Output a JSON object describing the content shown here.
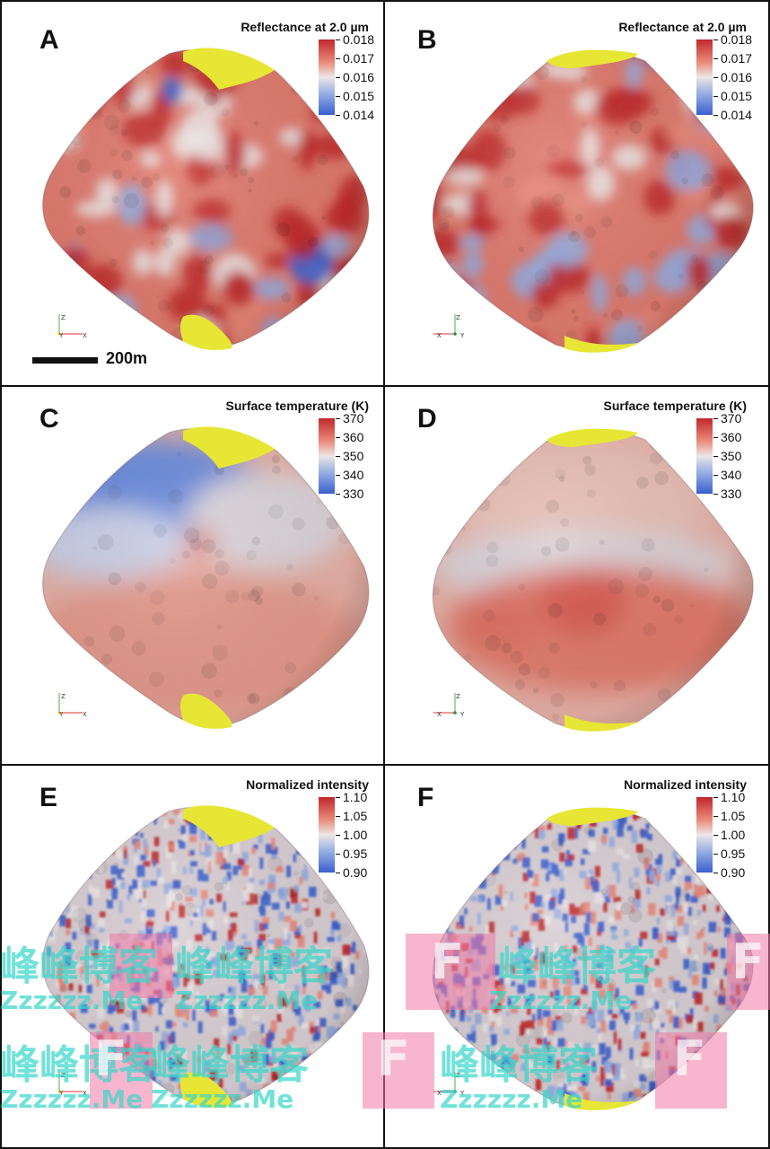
{
  "figure": {
    "panels": [
      {
        "letter": "A",
        "title": "Reflectance at 2.0 µm",
        "ticks": [
          "0.018",
          "0.017",
          "0.016",
          "0.015",
          "0.014"
        ],
        "variant": "reflect-a"
      },
      {
        "letter": "B",
        "title": "Reflectance at 2.0 µm",
        "ticks": [
          "0.018",
          "0.017",
          "0.016",
          "0.015",
          "0.014"
        ],
        "variant": "reflect-b"
      },
      {
        "letter": "C",
        "title": "Surface temperature (K)",
        "ticks": [
          "370",
          "360",
          "350",
          "340",
          "330"
        ],
        "variant": "temp-c"
      },
      {
        "letter": "D",
        "title": "Surface temperature (K)",
        "ticks": [
          "370",
          "360",
          "350",
          "340",
          "330"
        ],
        "variant": "temp-d"
      },
      {
        "letter": "E",
        "title": "Normalized intensity",
        "ticks": [
          "1.10",
          "1.05",
          "1.00",
          "0.95",
          "0.90"
        ],
        "variant": "intens-e"
      },
      {
        "letter": "F",
        "title": "Normalized intensity",
        "ticks": [
          "1.10",
          "1.05",
          "1.00",
          "0.95",
          "0.90"
        ],
        "variant": "intens-f"
      }
    ],
    "scale_label": "200m",
    "axis_labels": {
      "z": "Z",
      "x": "X",
      "y": "Y"
    }
  },
  "watermark": {
    "glyph": "F",
    "text_cn": "峰峰博客",
    "text_en": "Zzzzzz.Me",
    "color_pink": "#f07aa6",
    "color_cyan": "#36d6c9"
  },
  "colors": {
    "red": "#c0282a",
    "light_red": "#e98a7a",
    "white": "#ece6e6",
    "light_blue": "#95aee3",
    "blue": "#3a5fcf",
    "yellow": "#e7e634"
  }
}
